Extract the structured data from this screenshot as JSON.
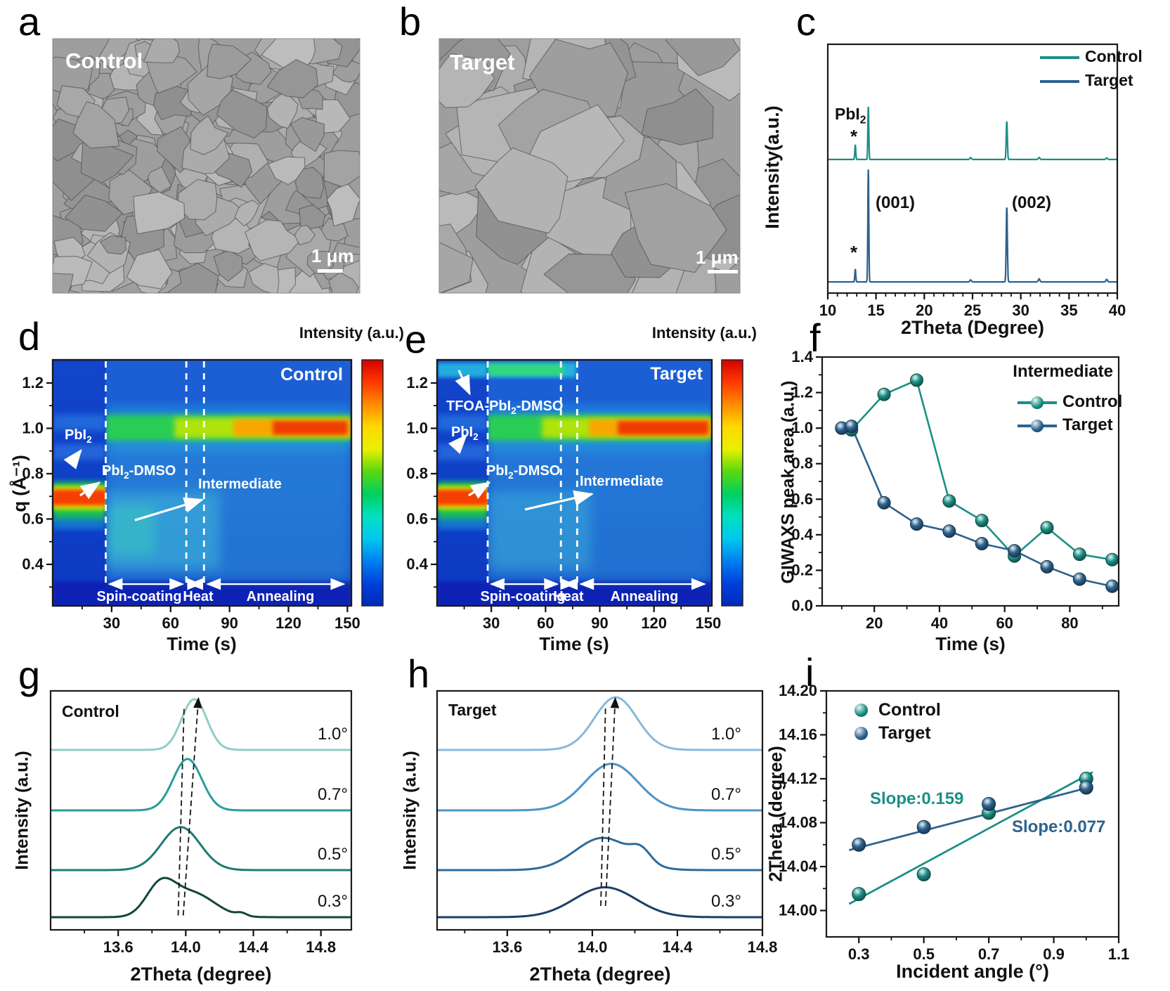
{
  "panels": {
    "a": {
      "letter": "a",
      "label": "Control",
      "scale": "1 μm"
    },
    "b": {
      "letter": "b",
      "label": "Target",
      "scale": "1 μm"
    },
    "c": {
      "letter": "c"
    },
    "d": {
      "letter": "d"
    },
    "e": {
      "letter": "e"
    },
    "f": {
      "letter": "f"
    },
    "g": {
      "letter": "g"
    },
    "h": {
      "letter": "h"
    },
    "i": {
      "letter": "i"
    }
  },
  "chart_data": {
    "c": {
      "type": "line",
      "xlabel": "2Theta (Degree)",
      "ylabel": "Intensity(a.u.)",
      "xlim": [
        10,
        40
      ],
      "xticks": [
        10,
        15,
        20,
        25,
        30,
        35,
        40
      ],
      "legend": [
        "Control",
        "Target"
      ],
      "annotations": {
        "phase": "PbI2",
        "star": "*",
        "peak1": "(001)",
        "peak2": "(002)"
      },
      "series": [
        {
          "name": "Control",
          "color": "#1c8f86",
          "baseline": 0.537,
          "peaks": [
            [
              12.85,
              0.058,
              0.05
            ],
            [
              14.2,
              0.212,
              0.05
            ],
            [
              24.8,
              0.008,
              0.08
            ],
            [
              28.55,
              0.152,
              0.06
            ],
            [
              31.9,
              0.008,
              0.08
            ],
            [
              38.9,
              0.006,
              0.08
            ]
          ]
        },
        {
          "name": "Target",
          "color": "#2d628f",
          "baseline": 0.045,
          "peaks": [
            [
              12.85,
              0.05,
              0.05
            ],
            [
              14.2,
              0.452,
              0.05
            ],
            [
              24.8,
              0.008,
              0.08
            ],
            [
              28.55,
              0.3,
              0.06
            ],
            [
              31.9,
              0.012,
              0.08
            ],
            [
              38.9,
              0.01,
              0.08
            ]
          ]
        }
      ]
    },
    "d": {
      "type": "heatmap",
      "label": "Control",
      "xlabel": "Time (s)",
      "ylabel": "q (Å⁻¹)",
      "colorbar_title": "Intensity (a.u.)",
      "xlim": [
        0,
        152
      ],
      "ylim": [
        0.217,
        1.302
      ],
      "xticks": [
        30,
        60,
        90,
        120,
        150
      ],
      "yticks": [
        "0.4",
        "0.6",
        "0.8",
        "1.0",
        "1.2"
      ],
      "dashed_lines": [
        27,
        68,
        77
      ],
      "annotations": {
        "pbi2": "PbI2",
        "pbi2_dmso": "PbI2-DMSO",
        "intermediate": "Intermediate"
      },
      "stages": [
        {
          "label": "Spin-coating",
          "from": 27,
          "to": 68
        },
        {
          "label": "Heat",
          "from": 68,
          "to": 77
        },
        {
          "label": "Annealing",
          "from": 77,
          "to": 150
        }
      ],
      "features": [
        "PbI2 band at q≈0.7 before spin-coating",
        "PbI2-DMSO intermediate at q≈0.5-0.7 during spin-coating",
        "perovskite band at q≈1.0 growing red during annealing"
      ],
      "colormap": [
        "#0028b8",
        "#0040dc",
        "#0080f0",
        "#00c8f0",
        "#00e0c0",
        "#00d060",
        "#58d810",
        "#e8f000",
        "#ffd800",
        "#ff8c00",
        "#ff3800",
        "#d40000"
      ]
    },
    "e": {
      "type": "heatmap",
      "label": "Target",
      "xlabel": "Time (s)",
      "ylabel": "q (Å⁻¹)",
      "colorbar_title": "Intensity (a.u.)",
      "xlim": [
        0,
        152
      ],
      "ylim": [
        0.217,
        1.302
      ],
      "xticks": [
        30,
        60,
        90,
        120,
        150
      ],
      "yticks": [
        "0.4",
        "0.6",
        "0.8",
        "1.0",
        "1.2"
      ],
      "dashed_lines": [
        28,
        68.5,
        77.5
      ],
      "annotations": {
        "tfoa": "TFOA-PbI2-DMSO",
        "pbi2": "PbI2",
        "pbi2_dmso": "PbI2-DMSO",
        "intermediate": "Intermediate"
      },
      "stages": [
        {
          "label": "Spin-coating",
          "from": 28,
          "to": 68.5
        },
        {
          "label": "Heat",
          "from": 68.5,
          "to": 77.5
        },
        {
          "label": "Annealing",
          "from": 77.5,
          "to": 150
        }
      ],
      "features": [
        "TFOA-PbI2-DMSO band at q≈1.25",
        "PbI2 band at q≈0.7 before spin-coating",
        "perovskite band at q≈1.0 growing red during annealing"
      ],
      "colormap": [
        "#0028b8",
        "#0040dc",
        "#0080f0",
        "#00c8f0",
        "#00e0c0",
        "#00d060",
        "#58d810",
        "#e8f000",
        "#ffd800",
        "#ff8c00",
        "#ff3800",
        "#d40000"
      ]
    },
    "f": {
      "type": "scatter-line",
      "xlabel": "Time (s)",
      "ylabel": "GIWAXS peak area (a.u.)",
      "legend_title": "Intermediate",
      "xlim": [
        4,
        95
      ],
      "ylim": [
        0,
        1.4
      ],
      "xticks": [
        20,
        40,
        60,
        80
      ],
      "yticks": [
        "0.0",
        "0.2",
        "0.4",
        "0.6",
        "0.8",
        "1.0",
        "1.2",
        "1.4"
      ],
      "series": [
        {
          "name": "Control",
          "color": "#1c8f86",
          "x": [
            10,
            13,
            23,
            33,
            43,
            53,
            63,
            73,
            83,
            93
          ],
          "y": [
            1.0,
            0.99,
            1.19,
            1.27,
            0.59,
            0.48,
            0.28,
            0.44,
            0.29,
            0.26
          ]
        },
        {
          "name": "Target",
          "color": "#2d628f",
          "x": [
            10,
            13,
            23,
            33,
            43,
            53,
            63,
            73,
            83,
            93
          ],
          "y": [
            1.0,
            1.01,
            0.58,
            0.46,
            0.42,
            0.35,
            0.31,
            0.22,
            0.15,
            0.11
          ]
        }
      ]
    },
    "g": {
      "type": "stacked-xrd",
      "label": "Control",
      "xlabel": "2Theta (degree)",
      "ylabel": "Intensity (a.u.)",
      "xlim": [
        13.2,
        14.98
      ],
      "xticks": [
        "13.6",
        "14.0",
        "14.4",
        "14.8"
      ],
      "curves": [
        {
          "angle": "1.0°",
          "color": "#8fcec6",
          "baseline": 0.753,
          "peaks": [
            [
              14.05,
              0.212,
              0.075
            ]
          ]
        },
        {
          "angle": "0.7°",
          "color": "#2a9e96",
          "baseline": 0.5,
          "peaks": [
            [
              14.01,
              0.215,
              0.085
            ]
          ]
        },
        {
          "angle": "0.5°",
          "color": "#1e7c74",
          "baseline": 0.25,
          "peaks": [
            [
              13.97,
              0.18,
              0.115
            ]
          ]
        },
        {
          "angle": "0.3°",
          "color": "#14453f",
          "baseline": 0.053,
          "peaks": [
            [
              13.85,
              0.125,
              0.085
            ],
            [
              14.04,
              0.1,
              0.13
            ],
            [
              14.33,
              0.012,
              0.03
            ]
          ]
        }
      ]
    },
    "h": {
      "type": "stacked-xrd",
      "label": "Target",
      "xlabel": "2Theta (degree)",
      "ylabel": "Intensity (a.u.)",
      "xlim": [
        13.27,
        14.8
      ],
      "xticks": [
        "13.6",
        "14.0",
        "14.4",
        "14.8"
      ],
      "curves": [
        {
          "angle": "1.0°",
          "color": "#88b9dc",
          "baseline": 0.753,
          "peaks": [
            [
              14.11,
              0.22,
              0.1
            ]
          ]
        },
        {
          "angle": "0.7°",
          "color": "#4b94c4",
          "baseline": 0.5,
          "peaks": [
            [
              14.09,
              0.195,
              0.125
            ]
          ]
        },
        {
          "angle": "0.5°",
          "color": "#2d6b9c",
          "baseline": 0.25,
          "peaks": [
            [
              14.05,
              0.135,
              0.13
            ],
            [
              14.23,
              0.05,
              0.045
            ]
          ]
        },
        {
          "angle": "0.3°",
          "color": "#1c3f66",
          "baseline": 0.053,
          "peaks": [
            [
              14.06,
              0.125,
              0.145
            ]
          ]
        }
      ]
    },
    "i": {
      "type": "scatter-fit",
      "xlabel": "Incident angle (°)",
      "ylabel": "2Theta (degree)",
      "xlim": [
        0.2,
        1.1
      ],
      "ylim": [
        13.976,
        14.2
      ],
      "xticks": [
        "0.3",
        "0.5",
        "0.7",
        "0.9",
        "1.1"
      ],
      "yticks": [
        "14.00",
        "14.04",
        "14.08",
        "14.12",
        "14.16",
        "14.20"
      ],
      "series": [
        {
          "name": "Control",
          "color": "#1c8f86",
          "slope_label": "Slope:0.159",
          "points": [
            [
              0.3,
              14.015
            ],
            [
              0.5,
              14.033
            ],
            [
              0.7,
              14.089
            ],
            [
              1.0,
              14.12
            ]
          ],
          "fit": [
            [
              0.27,
              14.006
            ],
            [
              1.02,
              14.126
            ]
          ]
        },
        {
          "name": "Target",
          "color": "#2d628f",
          "slope_label": "Slope:0.077",
          "points": [
            [
              0.3,
              14.06
            ],
            [
              0.5,
              14.076
            ],
            [
              0.7,
              14.097
            ],
            [
              1.0,
              14.112
            ]
          ],
          "fit": [
            [
              0.27,
              14.055
            ],
            [
              1.02,
              14.113
            ]
          ]
        }
      ]
    }
  }
}
